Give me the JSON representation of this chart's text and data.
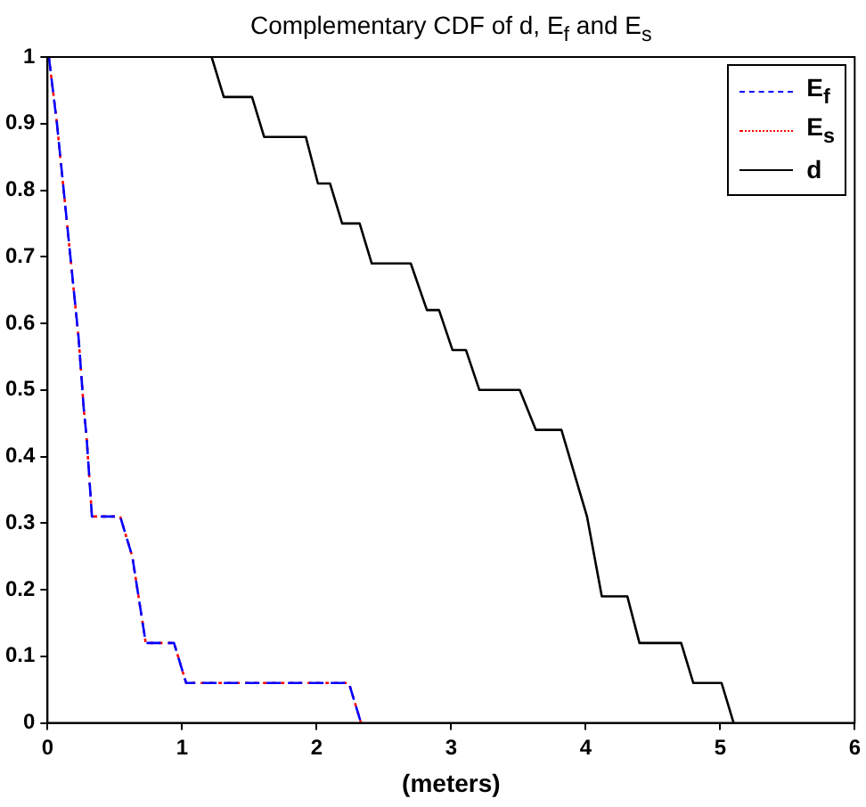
{
  "chart_data": {
    "type": "line",
    "title": "Complementary CDF of d, E$_{f}$ and E$_{s}$",
    "xlabel": "(meters)",
    "xlim": [
      0,
      6
    ],
    "xticks": [
      0,
      1,
      2,
      3,
      4,
      5,
      6
    ],
    "ylim": [
      0,
      1
    ],
    "yticks": [
      0,
      0.1,
      0.2,
      0.3,
      0.4,
      0.5,
      0.6,
      0.7,
      0.8,
      0.9,
      1
    ],
    "grid": false,
    "legend": "top right",
    "marker": "none",
    "series": [
      {
        "name": "E$_{f}$",
        "color": "#0000ff",
        "line_style": "dashed",
        "x": [
          0.01,
          0.07,
          0.12,
          0.17,
          0.23,
          0.27,
          0.29,
          0.33,
          0.54,
          0.63,
          0.73,
          0.94,
          1.03,
          2.24,
          2.33
        ],
        "values": [
          1,
          0.9,
          0.8,
          0.7,
          0.58,
          0.47,
          0.43,
          0.31,
          0.31,
          0.25,
          0.12,
          0.12,
          0.06,
          0.06,
          0
        ]
      },
      {
        "name": "E$_{s}$",
        "color": "#ff0000",
        "line_style": "dotted",
        "x": [
          0.01,
          0.07,
          0.12,
          0.17,
          0.23,
          0.27,
          0.29,
          0.33,
          0.54,
          0.63,
          0.73,
          0.94,
          1.03,
          2.24,
          2.33
        ],
        "values": [
          1,
          0.9,
          0.8,
          0.7,
          0.58,
          0.47,
          0.43,
          0.31,
          0.31,
          0.25,
          0.12,
          0.12,
          0.06,
          0.06,
          0
        ]
      },
      {
        "name": "d",
        "color": "#000000",
        "line_style": "solid",
        "x": [
          1.22,
          1.31,
          1.52,
          1.61,
          1.92,
          2.01,
          2.1,
          2.19,
          2.32,
          2.41,
          2.7,
          2.82,
          2.91,
          3.01,
          3.11,
          3.21,
          3.51,
          3.63,
          3.82,
          4.01,
          4.12,
          4.31,
          4.4,
          4.71,
          4.8,
          5.01,
          5.1
        ],
        "values": [
          1,
          0.94,
          0.94,
          0.88,
          0.88,
          0.81,
          0.81,
          0.75,
          0.75,
          0.69,
          0.69,
          0.62,
          0.62,
          0.56,
          0.56,
          0.5,
          0.5,
          0.44,
          0.44,
          0.31,
          0.19,
          0.19,
          0.12,
          0.12,
          0.06,
          0.06,
          0
        ]
      }
    ]
  }
}
